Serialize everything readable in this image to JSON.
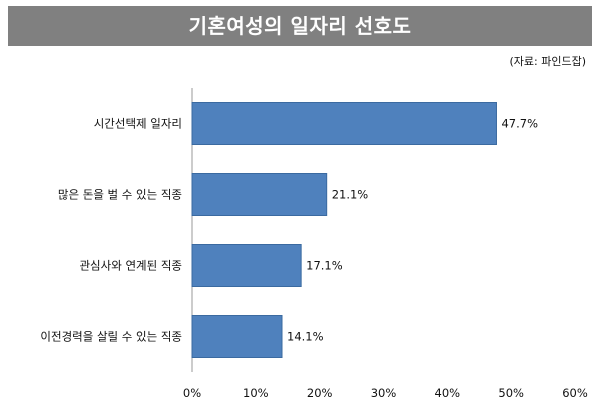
{
  "title": "기혼여성의 일자리 선호도",
  "source": "(자료: 파인드잡)",
  "colors": {
    "bar": "#4f81bd",
    "bar_edge": "#3b6aa0",
    "title_bg": "#808080"
  },
  "chart_data": {
    "type": "bar",
    "orientation": "horizontal",
    "categories": [
      "시간선택제 일자리",
      "많은 돈을 벌 수 있는 직종",
      "관심사와 연계된 직종",
      "이전경력을 살릴 수 있는 직종"
    ],
    "values": [
      47.7,
      21.1,
      17.1,
      14.1
    ],
    "value_labels": [
      "47.7%",
      "21.1%",
      "17.1%",
      "14.1%"
    ],
    "xlim": [
      0,
      60
    ],
    "xticks": [
      0,
      10,
      20,
      30,
      40,
      50,
      60
    ],
    "xtick_labels": [
      "0%",
      "10%",
      "20%",
      "30%",
      "40%",
      "50%",
      "60%"
    ],
    "grid": false,
    "legend": "none"
  }
}
